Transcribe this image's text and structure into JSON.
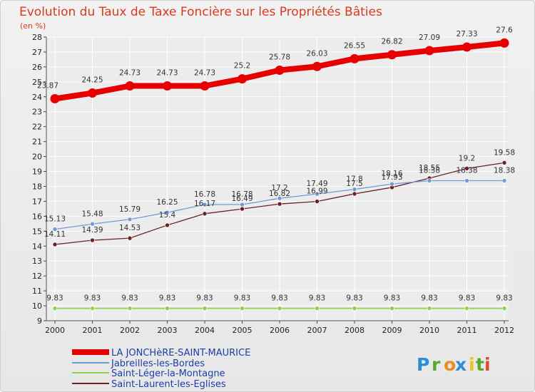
{
  "chart_data": {
    "type": "line",
    "title": "Evolution du Taux de Taxe Foncière sur les Propriétés Bâties",
    "subtitle": "(en %)",
    "xlabel": "",
    "ylabel": "(en %)",
    "x": [
      "2000",
      "2001",
      "2002",
      "2003",
      "2004",
      "2005",
      "2006",
      "2007",
      "2008",
      "2009",
      "2010",
      "2011",
      "2012"
    ],
    "ylim": [
      9,
      28
    ],
    "yticks": [
      "9",
      "10",
      "11",
      "12",
      "13",
      "14",
      "15",
      "16",
      "17",
      "18",
      "19",
      "20",
      "21",
      "22",
      "23",
      "24",
      "25",
      "26",
      "27",
      "28"
    ],
    "grid": true,
    "legend_position": "bottom-left",
    "series": [
      {
        "name": "LA JONCHèRE-SAINT-MAURICE",
        "color": "#e60000",
        "values": [
          23.87,
          24.25,
          24.73,
          24.73,
          24.73,
          25.2,
          25.78,
          26.03,
          26.55,
          26.82,
          27.09,
          27.33,
          27.6
        ],
        "labels": [
          "23.87",
          "24.25",
          "24.73",
          "24.73",
          "24.73",
          "25.2",
          "25.78",
          "26.03",
          "26.55",
          "26.82",
          "27.09",
          "27.33",
          "27.6"
        ]
      },
      {
        "name": "Jabreilles-les-Bordes",
        "color": "#6f9ad6",
        "values": [
          15.13,
          15.48,
          15.79,
          16.25,
          16.78,
          16.78,
          17.2,
          17.49,
          17.8,
          18.16,
          18.38,
          18.38,
          18.38
        ],
        "labels": [
          "15.13",
          "15.48",
          "15.79",
          "16.25",
          "16.78",
          "16.78",
          "17.2",
          "17.49",
          "17.8",
          "18.16",
          "18.38",
          "18.38",
          "18.38"
        ]
      },
      {
        "name": "Saint-Léger-la-Montagne",
        "color": "#8bd34a",
        "values": [
          9.83,
          9.83,
          9.83,
          9.83,
          9.83,
          9.83,
          9.83,
          9.83,
          9.83,
          9.83,
          9.83,
          9.83,
          9.83
        ],
        "labels": [
          "9.83",
          "9.83",
          "9.83",
          "9.83",
          "9.83",
          "9.83",
          "9.83",
          "9.83",
          "9.83",
          "9.83",
          "9.83",
          "9.83",
          "9.83"
        ]
      },
      {
        "name": "Saint-Laurent-les-Eglises",
        "color": "#6e2024",
        "values": [
          14.11,
          14.39,
          14.53,
          15.4,
          16.17,
          16.49,
          16.82,
          16.99,
          17.5,
          17.93,
          18.55,
          19.2,
          19.58
        ],
        "labels": [
          "14.11",
          "14.39",
          "14.53",
          "15.4",
          "16.17",
          "16.49",
          "16.82",
          "16.99",
          "17.5",
          "17.93",
          "18.55",
          "19.2",
          "19.58"
        ]
      }
    ]
  },
  "logo": {
    "letters": [
      "P",
      "r",
      "o",
      "x",
      "i",
      "t",
      "i"
    ],
    "colors": [
      "#2a8fd8",
      "#5aa72a",
      "#f08c1c",
      "#2a8fd8",
      "#f0c21c",
      "#5aa72a",
      "#e64a2a"
    ]
  }
}
